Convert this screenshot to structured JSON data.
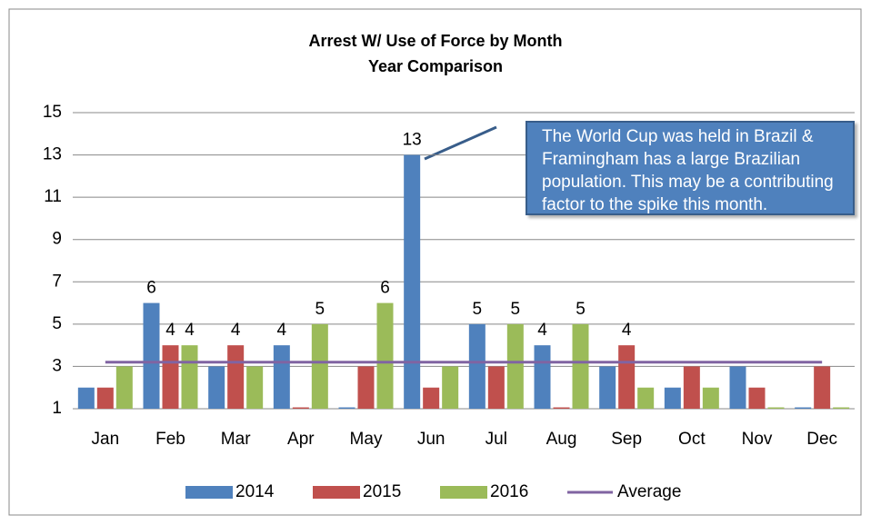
{
  "chart_data": {
    "type": "bar",
    "title": "Arrest W/ Use of Force by Month",
    "subtitle": "Year Comparison",
    "categories": [
      "Jan",
      "Feb",
      "Mar",
      "Apr",
      "May",
      "Jun",
      "Jul",
      "Aug",
      "Sep",
      "Oct",
      "Nov",
      "Dec"
    ],
    "series": [
      {
        "name": "2014",
        "color": "#4f81bd",
        "values": [
          2,
          6,
          3,
          4,
          1,
          13,
          5,
          4,
          3,
          2,
          3,
          1
        ],
        "value_labels": [
          null,
          "6",
          null,
          "4",
          null,
          "13",
          "5",
          "4",
          null,
          null,
          null,
          null
        ]
      },
      {
        "name": "2015",
        "color": "#c0504d",
        "values": [
          2,
          4,
          4,
          1,
          3,
          2,
          3,
          1,
          4,
          3,
          2,
          3
        ],
        "value_labels": [
          null,
          "4",
          "4",
          null,
          null,
          null,
          null,
          null,
          "4",
          null,
          null,
          null
        ]
      },
      {
        "name": "2016",
        "color": "#9bbb59",
        "values": [
          3,
          4,
          3,
          5,
          6,
          3,
          5,
          5,
          2,
          2,
          1,
          1
        ],
        "value_labels": [
          null,
          "4",
          null,
          "5",
          "6",
          null,
          "5",
          "5",
          null,
          null,
          null,
          null
        ]
      },
      {
        "name": "Average",
        "type": "line",
        "color": "#8064a2",
        "values": [
          3.2,
          3.2,
          3.2,
          3.2,
          3.2,
          3.2,
          3.2,
          3.2,
          3.2,
          3.2,
          3.2,
          3.2
        ]
      }
    ],
    "ylim": [
      1,
      15
    ],
    "yticks": [
      1,
      3,
      5,
      7,
      9,
      11,
      13,
      15
    ],
    "grid": true,
    "legend": "bottom",
    "annotation": "The World Cup was held in Brazil & Framingham has a large Brazilian population.  This may be a contributing factor to the spike this month."
  }
}
